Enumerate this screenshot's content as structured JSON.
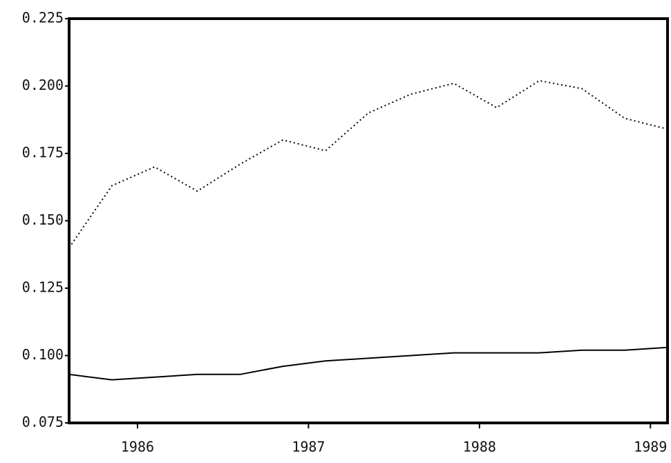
{
  "chart_data": {
    "type": "line",
    "x": [
      1985.6,
      1985.85,
      1986.1,
      1986.35,
      1986.6,
      1986.85,
      1987.1,
      1987.35,
      1987.6,
      1987.85,
      1988.1,
      1988.35,
      1988.6,
      1988.85,
      1989.1
    ],
    "series": [
      {
        "name": null,
        "color": "#000000",
        "style": "dotted",
        "values": [
          0.14,
          0.163,
          0.17,
          0.161,
          0.171,
          0.18,
          0.176,
          0.19,
          0.197,
          0.201,
          0.192,
          0.202,
          0.199,
          0.188,
          0.184
        ]
      },
      {
        "name": null,
        "color": "#000000",
        "style": "solid",
        "values": [
          0.093,
          0.091,
          0.092,
          0.093,
          0.093,
          0.096,
          0.098,
          0.099,
          0.1,
          0.101,
          0.101,
          0.101,
          0.102,
          0.102,
          0.103
        ]
      }
    ],
    "xlim": [
      1985.6,
      1989.1
    ],
    "xticks": [
      1986,
      1987,
      1988,
      1989
    ],
    "ylim": [
      0.075,
      0.225
    ],
    "yticks": [
      0.075,
      {
        "value": 0.1,
        "label": "0.100"
      },
      0.125,
      {
        "value": 0.15,
        "label": "0.150"
      },
      0.175,
      {
        "value": 0.2,
        "label": "0.200"
      },
      0.225
    ],
    "grid": false
  }
}
